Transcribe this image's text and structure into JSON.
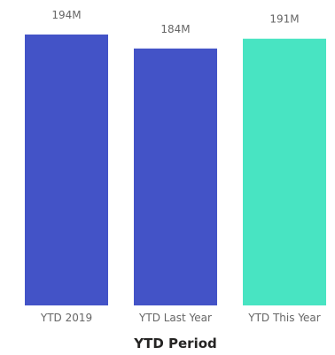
{
  "chart_data": {
    "type": "bar",
    "title": "",
    "xlabel": "YTD Period",
    "ylabel": "",
    "ylim": [
      0,
      194
    ],
    "unit": "M",
    "grid": false,
    "legend": "none",
    "categories": [
      "YTD 2019",
      "YTD Last Year",
      "YTD This Year"
    ],
    "values": [
      194,
      184,
      191
    ],
    "value_labels": [
      "194M",
      "184M",
      "191M"
    ],
    "colors": [
      "#4353c7",
      "#4353c7",
      "#48e4c2"
    ]
  }
}
